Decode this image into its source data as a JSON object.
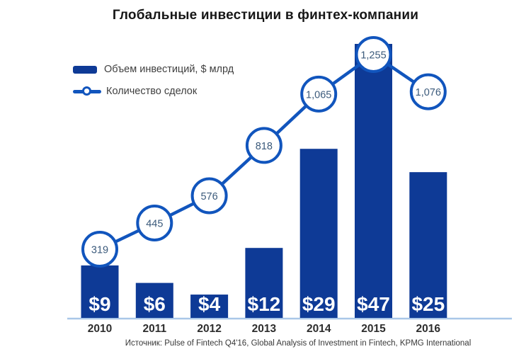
{
  "title": "Глобальные инвестиции в финтех-компании",
  "legend": {
    "bars_label": "Объем инвестиций, $ млрд",
    "line_label": "Количество сделок"
  },
  "source": "Источник: Pulse of Fintech Q4'16, Global Analysis of Investment in Fintech, KPMG International",
  "colors": {
    "bar": "#0e3a96",
    "line": "#1155bd",
    "marker_fill": "#ffffff",
    "marker_text": "#3b5a7b",
    "bar_value_text": "#ffffff",
    "axis_line": "#a9c7e8",
    "x_label": "#2e2e2e",
    "title_text": "#161616",
    "legend_text": "#3f3f3f"
  },
  "chart_data": {
    "type": "bar+line",
    "title": "Глобальные инвестиции в финтех-компании",
    "categories": [
      "2010",
      "2011",
      "2012",
      "2013",
      "2014",
      "2015",
      "2016"
    ],
    "series": [
      {
        "name": "Объем инвестиций, $ млрд",
        "type": "bar",
        "values": [
          9,
          6,
          4,
          12,
          29,
          47,
          25
        ],
        "labels": [
          "$9",
          "$6",
          "$4",
          "$12",
          "$29",
          "$47",
          "$25"
        ]
      },
      {
        "name": "Количество сделок",
        "type": "line",
        "values": [
          319,
          445,
          576,
          818,
          1065,
          1255,
          1076
        ],
        "labels": [
          "319",
          "445",
          "576",
          "818",
          "1,065",
          "1,255",
          "1,076"
        ]
      }
    ],
    "xlabel": "",
    "ylabel": "",
    "legend_position": "top-left",
    "grid": false,
    "x_axis_line": true,
    "data_labels": "on"
  }
}
